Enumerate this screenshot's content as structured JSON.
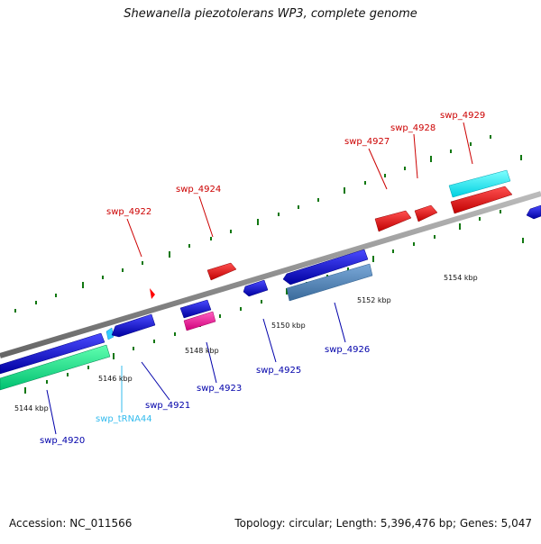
{
  "title": "Shewanella piezotolerans WP3, complete genome",
  "footer": {
    "accession": "Accession: NC_011566",
    "summary": "Topology: circular; Length: 5,396,476 bp; Genes: 5,047"
  },
  "scale_labels": [
    "5144 kbp",
    "5146 kbp",
    "5148 kbp",
    "5150 kbp",
    "5152 kbp",
    "5154 kbp"
  ],
  "genes": [
    {
      "id": "swp_4920",
      "strand": "-",
      "color": "#0000cc"
    },
    {
      "id": "swp_tRNA44",
      "strand": "-",
      "color": "#33ccff"
    },
    {
      "id": "swp_4921",
      "strand": "-",
      "color": "#0000cc"
    },
    {
      "id": "swp_4922",
      "strand": "+",
      "color": "#ff0000"
    },
    {
      "id": "swp_4923",
      "strand": "-",
      "color": "#ff1493"
    },
    {
      "id": "swp_4924",
      "strand": "+",
      "color": "#ff0000"
    },
    {
      "id": "swp_4925",
      "strand": "-",
      "color": "#0000cc"
    },
    {
      "id": "swp_4926",
      "strand": "-",
      "color": "#4682b4"
    },
    {
      "id": "swp_4927",
      "strand": "+",
      "color": "#ff0000"
    },
    {
      "id": "swp_4928",
      "strand": "+",
      "color": "#ff0000"
    },
    {
      "id": "swp_4929",
      "strand": "+",
      "color": "#ff0000"
    }
  ],
  "colors": {
    "forward": "#ff0000",
    "reverse": "#0000cc",
    "trna": "#33ccff",
    "backbone": "#888888",
    "ticks": "#117711"
  }
}
